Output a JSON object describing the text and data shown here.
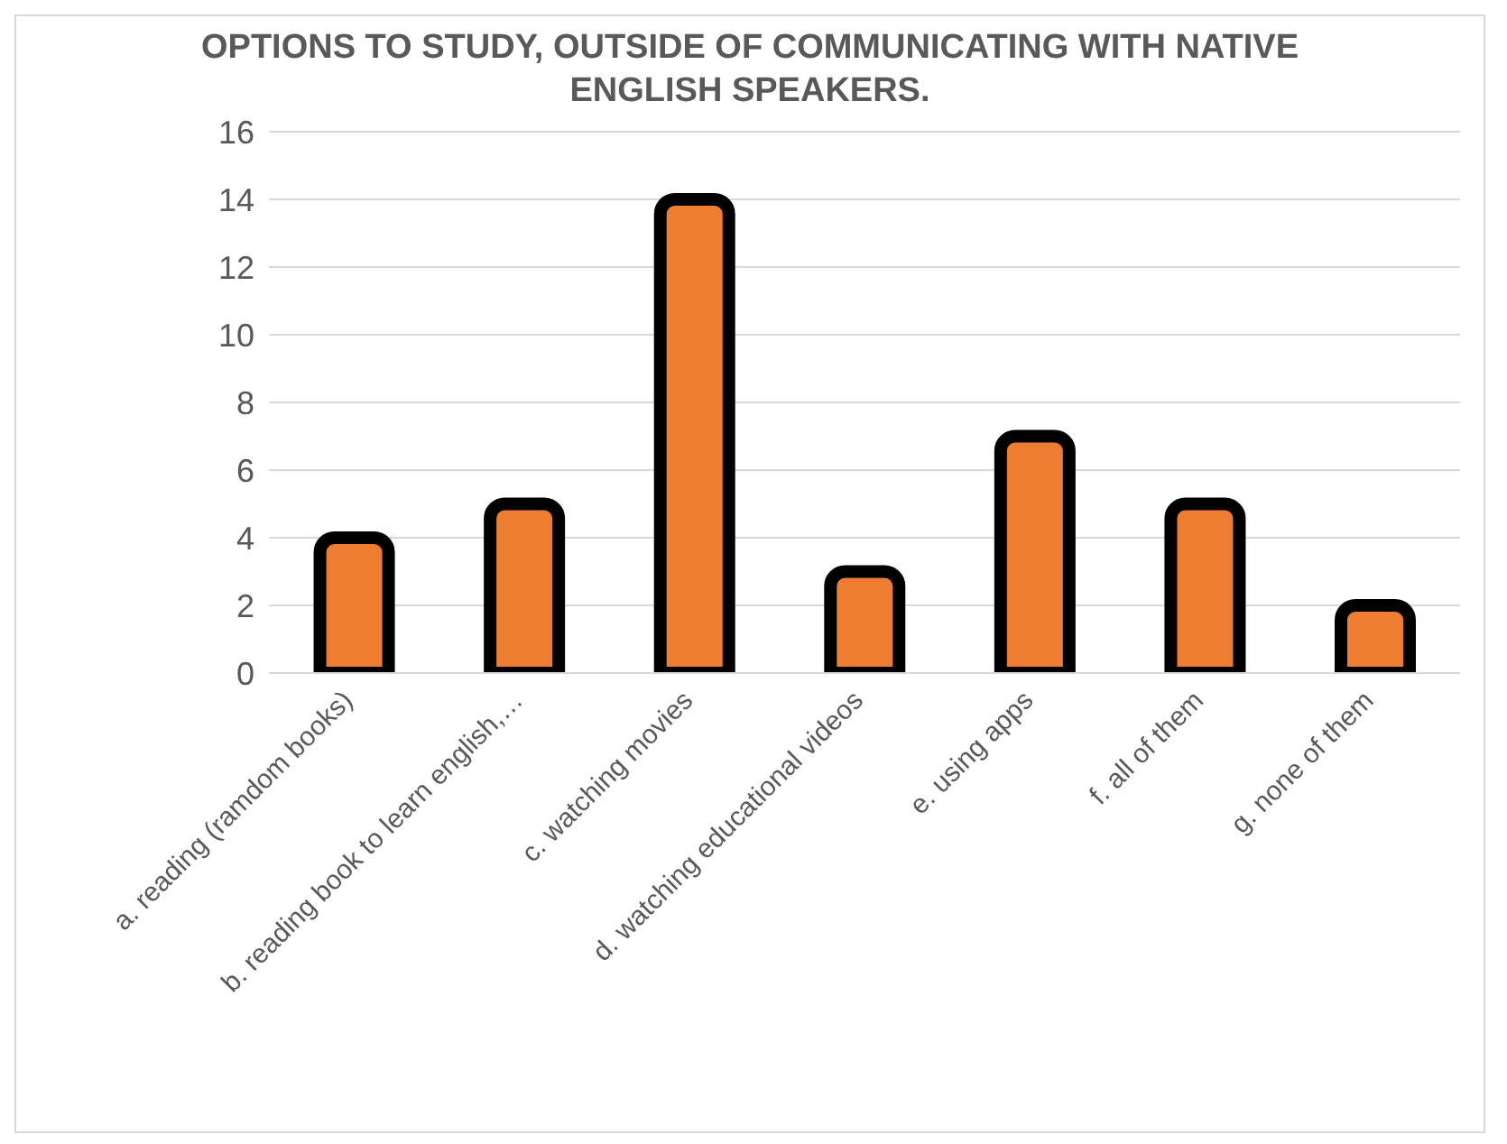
{
  "chart_data": {
    "type": "bar",
    "title": "OPTIONS TO STUDY, OUTSIDE OF COMMUNICATING WITH NATIVE ENGLISH SPEAKERS.",
    "categories": [
      "a. reading (ramdom books)",
      "b. reading book to learn english,…",
      "c. watching movies",
      "d. watching educational videos",
      "e. using apps",
      "f. all of them",
      "g. none of them"
    ],
    "values": [
      4,
      5,
      14,
      3,
      7,
      5,
      2
    ],
    "color": "#ed7d31",
    "ylim": [
      0,
      16
    ],
    "yticks": [
      0,
      2,
      4,
      6,
      8,
      10,
      12,
      14,
      16
    ],
    "grid": "y"
  }
}
